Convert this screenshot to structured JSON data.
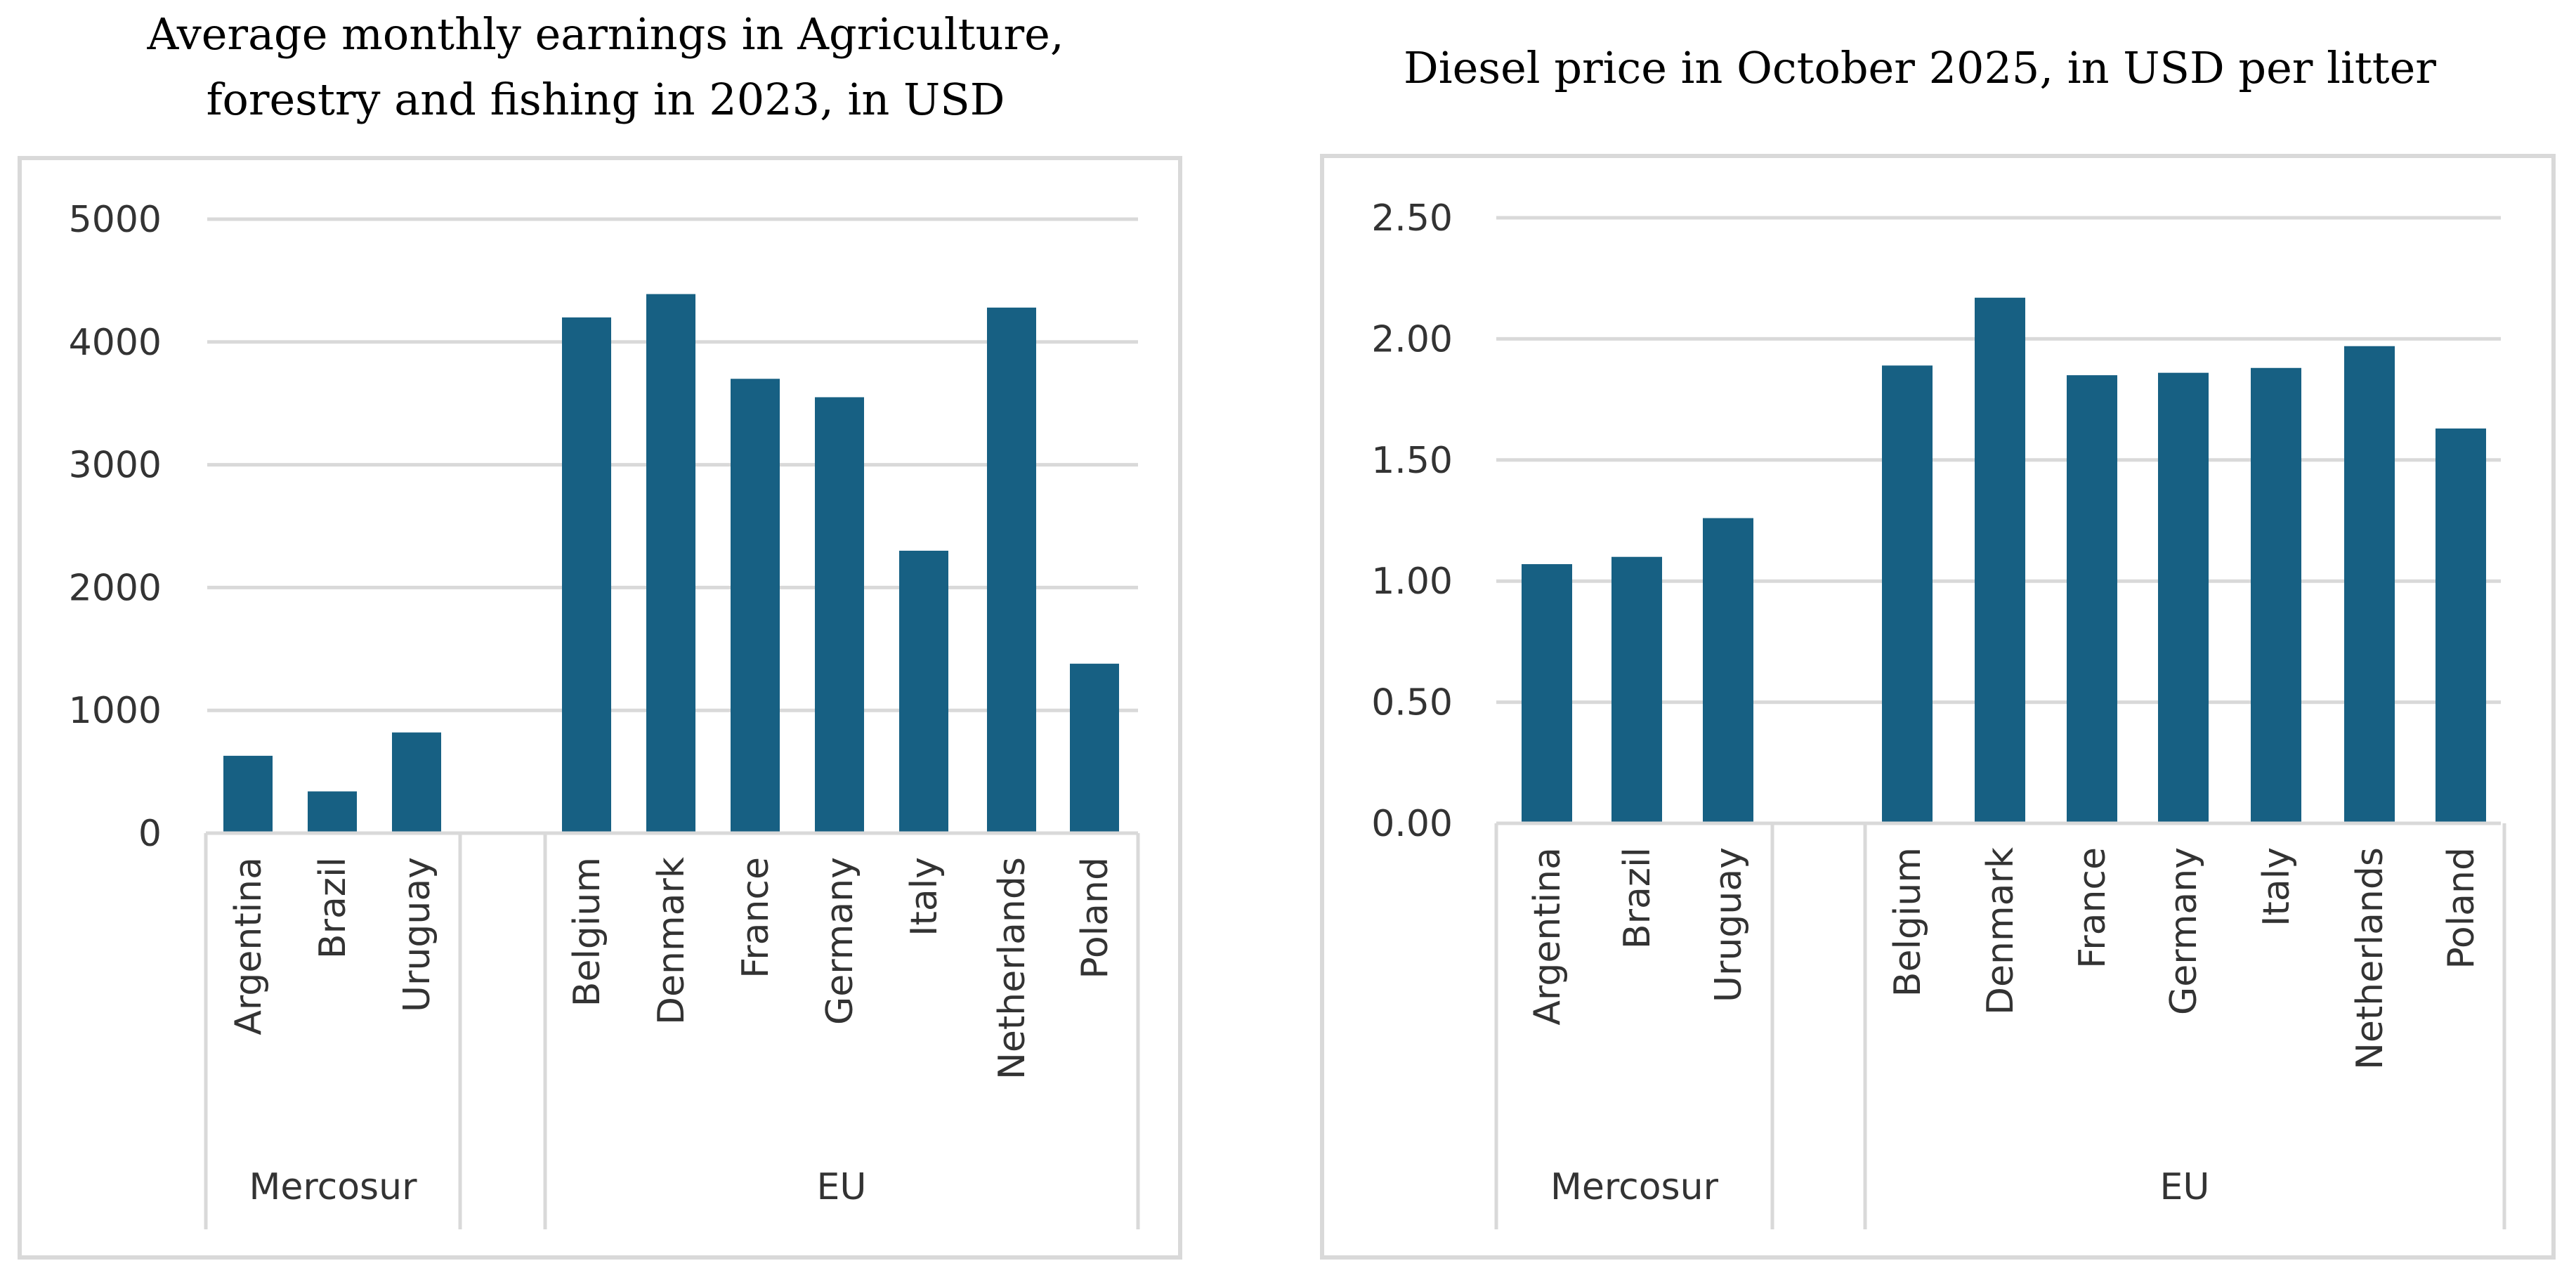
{
  "colors": {
    "bar": "#176083",
    "grid": "#d9d9d9"
  },
  "chart_data": [
    {
      "type": "bar",
      "title_lines": [
        "Average monthly earnings in Agriculture,",
        "forestry and fishing in 2023, in USD"
      ],
      "xlabel": "",
      "ylabel": "",
      "ylim": [
        0,
        5000
      ],
      "yticks": [
        0,
        1000,
        2000,
        3000,
        4000,
        5000
      ],
      "ytick_labels": [
        "0",
        "1000",
        "2000",
        "3000",
        "4000",
        "5000"
      ],
      "grid": true,
      "groups": [
        {
          "name": "Mercosur",
          "categories": [
            "Argentina",
            "Brazil",
            "Uruguay"
          ],
          "values": [
            630,
            340,
            820
          ]
        },
        {
          "name": "EU",
          "categories": [
            "Belgium",
            "Denmark",
            "France",
            "Germany",
            "Italy",
            "Netherlands",
            "Poland"
          ],
          "values": [
            4200,
            4390,
            3700,
            3550,
            2300,
            4280,
            1380
          ]
        }
      ]
    },
    {
      "type": "bar",
      "title_lines": [
        "Diesel price in October 2025, in USD per litter"
      ],
      "xlabel": "",
      "ylabel": "",
      "ylim": [
        0,
        2.5
      ],
      "yticks": [
        0,
        0.5,
        1,
        1.5,
        2,
        2.5
      ],
      "ytick_labels": [
        "0.00",
        "0.50",
        "1.00",
        "1.50",
        "2.00",
        "2.50"
      ],
      "grid": true,
      "groups": [
        {
          "name": "Mercosur",
          "categories": [
            "Argentina",
            "Brazil",
            "Uruguay"
          ],
          "values": [
            1.07,
            1.1,
            1.26
          ]
        },
        {
          "name": "EU",
          "categories": [
            "Belgium",
            "Denmark",
            "France",
            "Germany",
            "Italy",
            "Netherlands",
            "Poland"
          ],
          "values": [
            1.89,
            2.17,
            1.85,
            1.86,
            1.88,
            1.97,
            1.63
          ]
        }
      ]
    }
  ]
}
